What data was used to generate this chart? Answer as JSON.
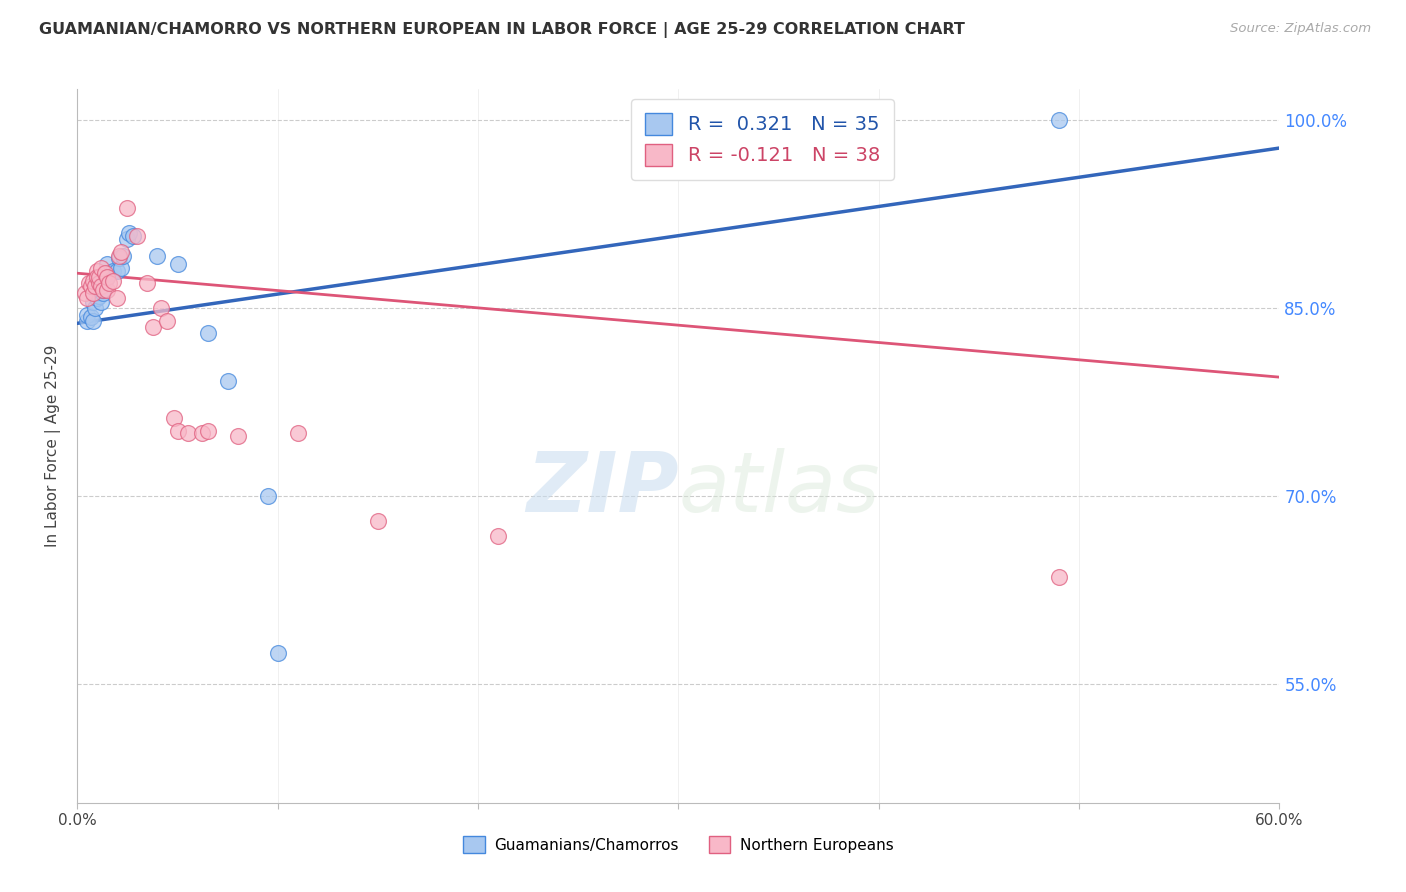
{
  "title": "GUAMANIAN/CHAMORRO VS NORTHERN EUROPEAN IN LABOR FORCE | AGE 25-29 CORRELATION CHART",
  "source": "Source: ZipAtlas.com",
  "ylabel": "In Labor Force | Age 25-29",
  "ytick_vals": [
    0.55,
    0.7,
    0.85,
    1.0
  ],
  "ytick_labels": [
    "55.0%",
    "70.0%",
    "85.0%",
    "100.0%"
  ],
  "xlim": [
    0.0,
    0.6
  ],
  "ylim": [
    0.455,
    1.025
  ],
  "legend_r_blue": "R =  0.321",
  "legend_n_blue": "N = 35",
  "legend_r_pink": "R = -0.121",
  "legend_n_pink": "N = 38",
  "blue_fill": "#A8C8F0",
  "blue_edge": "#4488DD",
  "pink_fill": "#F8B8C8",
  "pink_edge": "#E06080",
  "blue_line_color": "#3366BB",
  "pink_line_color": "#DD5577",
  "watermark_zip": "ZIP",
  "watermark_atlas": "atlas",
  "blue_scatter": [
    [
      0.005,
      0.84
    ],
    [
      0.005,
      0.845
    ],
    [
      0.007,
      0.843
    ],
    [
      0.008,
      0.84
    ],
    [
      0.008,
      0.855
    ],
    [
      0.008,
      0.862
    ],
    [
      0.009,
      0.85
    ],
    [
      0.01,
      0.858
    ],
    [
      0.01,
      0.862
    ],
    [
      0.01,
      0.87
    ],
    [
      0.011,
      0.863
    ],
    [
      0.011,
      0.86
    ],
    [
      0.012,
      0.855
    ],
    [
      0.012,
      0.868
    ],
    [
      0.013,
      0.862
    ],
    [
      0.013,
      0.865
    ],
    [
      0.014,
      0.872
    ],
    [
      0.015,
      0.875
    ],
    [
      0.015,
      0.885
    ],
    [
      0.016,
      0.878
    ],
    [
      0.018,
      0.88
    ],
    [
      0.02,
      0.88
    ],
    [
      0.021,
      0.89
    ],
    [
      0.022,
      0.882
    ],
    [
      0.023,
      0.892
    ],
    [
      0.025,
      0.905
    ],
    [
      0.026,
      0.91
    ],
    [
      0.028,
      0.908
    ],
    [
      0.04,
      0.892
    ],
    [
      0.05,
      0.885
    ],
    [
      0.065,
      0.83
    ],
    [
      0.075,
      0.792
    ],
    [
      0.095,
      0.7
    ],
    [
      0.1,
      0.575
    ],
    [
      0.49,
      1.0
    ]
  ],
  "pink_scatter": [
    [
      0.004,
      0.862
    ],
    [
      0.005,
      0.858
    ],
    [
      0.006,
      0.87
    ],
    [
      0.007,
      0.868
    ],
    [
      0.008,
      0.862
    ],
    [
      0.008,
      0.872
    ],
    [
      0.009,
      0.868
    ],
    [
      0.01,
      0.88
    ],
    [
      0.01,
      0.875
    ],
    [
      0.011,
      0.87
    ],
    [
      0.011,
      0.875
    ],
    [
      0.012,
      0.882
    ],
    [
      0.012,
      0.868
    ],
    [
      0.013,
      0.865
    ],
    [
      0.014,
      0.878
    ],
    [
      0.015,
      0.865
    ],
    [
      0.015,
      0.875
    ],
    [
      0.016,
      0.87
    ],
    [
      0.018,
      0.872
    ],
    [
      0.02,
      0.858
    ],
    [
      0.021,
      0.892
    ],
    [
      0.022,
      0.895
    ],
    [
      0.025,
      0.93
    ],
    [
      0.03,
      0.908
    ],
    [
      0.035,
      0.87
    ],
    [
      0.038,
      0.835
    ],
    [
      0.042,
      0.85
    ],
    [
      0.045,
      0.84
    ],
    [
      0.048,
      0.762
    ],
    [
      0.05,
      0.752
    ],
    [
      0.055,
      0.75
    ],
    [
      0.062,
      0.75
    ],
    [
      0.065,
      0.752
    ],
    [
      0.08,
      0.748
    ],
    [
      0.11,
      0.75
    ],
    [
      0.15,
      0.68
    ],
    [
      0.21,
      0.668
    ],
    [
      0.49,
      0.635
    ]
  ],
  "blue_line_x": [
    0.0,
    0.6
  ],
  "blue_line_y": [
    0.838,
    0.978
  ],
  "pink_line_x": [
    0.0,
    0.6
  ],
  "pink_line_y": [
    0.878,
    0.795
  ]
}
